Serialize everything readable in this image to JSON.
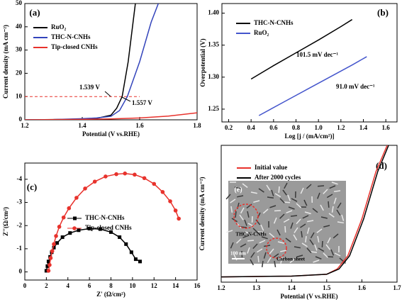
{
  "chart_data": [
    {
      "type": "line",
      "label": "(a)",
      "xlabel": "Potential (V vs.RHE)",
      "ylabel": "Current density (mA cm⁻²)",
      "xlim": [
        1.2,
        1.8
      ],
      "xticks": [
        1.2,
        1.4,
        1.6,
        1.8
      ],
      "ylim": [
        0,
        50
      ],
      "yticks": [
        0,
        10,
        20,
        30,
        40,
        50
      ],
      "hline": 10,
      "annotations": [
        "1.539 V",
        "1.557 V"
      ],
      "series": [
        {
          "name": "RuO₂",
          "color": "#000000",
          "x": [
            1.2,
            1.3,
            1.4,
            1.45,
            1.5,
            1.52,
            1.539,
            1.56,
            1.585
          ],
          "values": [
            0,
            0.1,
            0.3,
            0.6,
            2,
            5,
            10,
            25,
            50
          ]
        },
        {
          "name": "THC-N-CNHs",
          "color": "#3344bb",
          "x": [
            1.2,
            1.3,
            1.4,
            1.45,
            1.5,
            1.53,
            1.557,
            1.6,
            1.64,
            1.665
          ],
          "values": [
            0,
            0.1,
            0.5,
            0.8,
            1.5,
            4,
            10,
            25,
            42,
            50
          ]
        },
        {
          "name": "Tip-closed CNHs",
          "color": "#e8322c",
          "x": [
            1.2,
            1.4,
            1.5,
            1.6,
            1.7,
            1.8
          ],
          "values": [
            0,
            0.2,
            0.4,
            0.8,
            1.6,
            3
          ]
        }
      ]
    },
    {
      "type": "line",
      "label": "(b)",
      "xlabel": "Log [j / (mA/cm²)]",
      "ylabel": "Overpotential (V)",
      "xlim": [
        0.14,
        1.7
      ],
      "xticks": [
        0.2,
        0.4,
        0.6,
        0.8,
        {
          "value": 1,
          "label": "1.0"
        },
        1.2,
        1.4,
        1.6
      ],
      "ylim": [
        1.23,
        1.415
      ],
      "yticks": [
        1.25,
        {
          "value": 1.3,
          "label": "1.30"
        },
        1.35,
        {
          "value": 1.4,
          "label": "1.40"
        }
      ],
      "annotations": [
        "101.5 mV dec⁻¹",
        "91.0 mV dec⁻¹"
      ],
      "series": [
        {
          "name": "THC-N-CNHs",
          "color": "#000000",
          "x": [
            0.4,
            0.6,
            0.8,
            1.0,
            1.2,
            1.3
          ],
          "values": [
            1.297,
            1.318,
            1.338,
            1.358,
            1.379,
            1.39
          ]
        },
        {
          "name": "RuO₂",
          "color": "#4455cc",
          "x": [
            0.47,
            0.7,
            0.9,
            1.1,
            1.3,
            1.43
          ],
          "values": [
            1.24,
            1.262,
            1.281,
            1.3,
            1.319,
            1.332
          ]
        }
      ]
    },
    {
      "type": "scatter",
      "label": "(c)",
      "xlabel": "Z' (Ω/cm²)",
      "ylabel": "Z''(Ω/cm²)",
      "xlim": [
        0,
        16
      ],
      "xticks": [
        0,
        2,
        4,
        6,
        8,
        10,
        12,
        14,
        16
      ],
      "ylim": [
        0.35,
        -4.7
      ],
      "yticks": [
        0,
        -1,
        -2,
        -3,
        -4
      ],
      "series": [
        {
          "name": "THC-N-CNHs",
          "color": "#000000",
          "marker": "square",
          "x": [
            2.0,
            2.1,
            2.2,
            2.35,
            2.5,
            2.7,
            3.0,
            3.5,
            4.2,
            5.0,
            6.0,
            7.0,
            8.0,
            8.8,
            9.4,
            9.9,
            10.3,
            10.7
          ],
          "values": [
            -0.05,
            -0.25,
            -0.45,
            -0.65,
            -0.85,
            -1.05,
            -1.25,
            -1.5,
            -1.68,
            -1.8,
            -1.87,
            -1.85,
            -1.72,
            -1.5,
            -1.2,
            -0.85,
            -0.55,
            -0.45
          ]
        },
        {
          "name": "Tip-closed CNHs",
          "color": "#e8322c",
          "marker": "circle",
          "x": [
            2.2,
            2.3,
            2.4,
            2.55,
            2.7,
            2.9,
            3.2,
            3.6,
            4.1,
            4.8,
            5.6,
            6.5,
            7.5,
            8.5,
            9.3,
            10.2,
            11.1,
            12.0,
            12.8,
            13.5,
            14.0,
            14.3
          ],
          "values": [
            -0.05,
            -0.3,
            -0.6,
            -0.9,
            -1.2,
            -1.55,
            -1.95,
            -2.35,
            -2.75,
            -3.2,
            -3.6,
            -3.9,
            -4.12,
            -4.22,
            -4.25,
            -4.2,
            -4.05,
            -3.8,
            -3.45,
            -3.05,
            -2.65,
            -2.3
          ]
        }
      ]
    },
    {
      "type": "line",
      "label": "(d)",
      "xlabel": "Potential (V vs.RHE)",
      "ylabel": "Current density (mA cm⁻²)",
      "xlim": [
        1.2,
        1.7
      ],
      "xticks": [
        1.2,
        1.3,
        1.4,
        1.5,
        1.6,
        1.7
      ],
      "ylim": [
        -2,
        50
      ],
      "inset_labels": [
        "(e)",
        "THC-N-CNHs",
        "Carbon sheet",
        "100 nm"
      ],
      "series": [
        {
          "name": "Initial value",
          "color": "#e8322c",
          "x": [
            1.2,
            1.4,
            1.5,
            1.53,
            1.56,
            1.6,
            1.64,
            1.672
          ],
          "values": [
            0,
            0.3,
            1,
            3,
            8,
            22,
            40,
            50
          ]
        },
        {
          "name": "After 2000 cycles",
          "color": "#000000",
          "x": [
            1.2,
            1.4,
            1.5,
            1.535,
            1.565,
            1.605,
            1.645,
            1.676
          ],
          "values": [
            0,
            0.3,
            1,
            3,
            8,
            22,
            40,
            50
          ]
        }
      ]
    }
  ]
}
